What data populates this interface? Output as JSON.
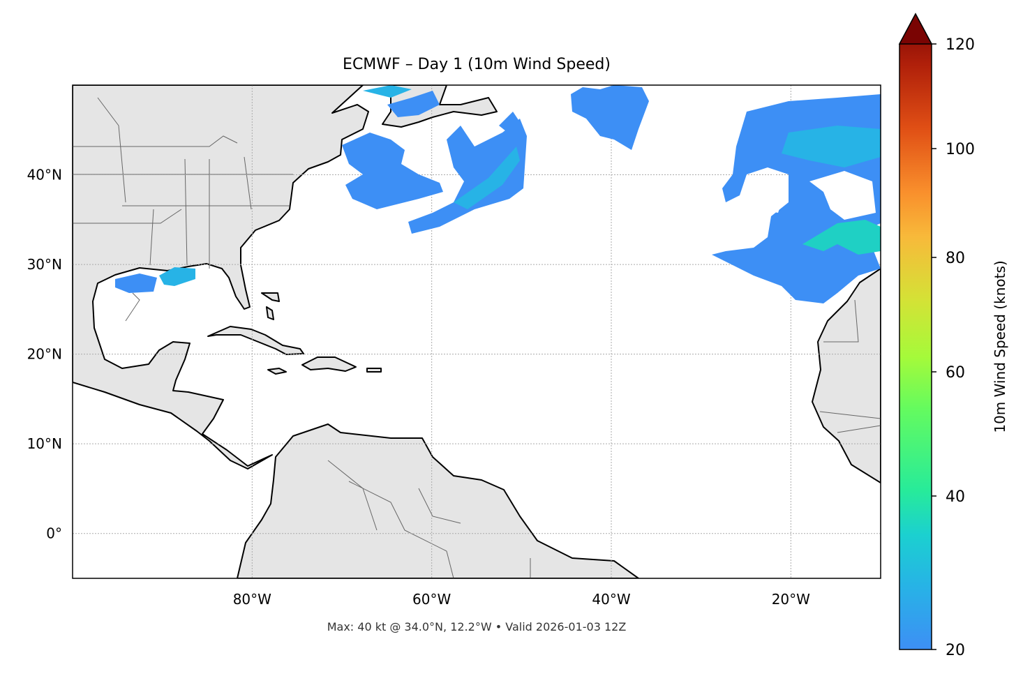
{
  "title": "ECMWF – Day 1 (10m Wind Speed)",
  "footer": "Max: 40 kt @ 34.0°N, 12.2°W • Valid 2026-01-03 12Z",
  "map": {
    "extent": {
      "lon": [
        -100,
        -10
      ],
      "lat": [
        -5,
        50
      ]
    },
    "lon_ticks": [
      {
        "value": -80,
        "label": "80°W"
      },
      {
        "value": -60,
        "label": "60°W"
      },
      {
        "value": -40,
        "label": "40°W"
      },
      {
        "value": -20,
        "label": "20°W"
      }
    ],
    "lat_ticks": [
      {
        "value": 40,
        "label": "40°N"
      },
      {
        "value": 30,
        "label": "30°N"
      },
      {
        "value": 20,
        "label": "20°N"
      },
      {
        "value": 10,
        "label": "10°N"
      },
      {
        "value": 0,
        "label": "0°"
      }
    ],
    "land_color": "#e5e5e5",
    "coast_color": "#000000",
    "border_color": "#666666"
  },
  "colorbar": {
    "label": "10m Wind Speed (knots)",
    "colormap": "turbo",
    "extend": "max",
    "ticks": [
      {
        "value": 20,
        "label": "20"
      },
      {
        "value": 40,
        "label": "40"
      },
      {
        "value": 60,
        "label": "60"
      },
      {
        "value": 80,
        "label": "80"
      },
      {
        "value": 100,
        "label": "100"
      },
      {
        "value": 120,
        "label": "120"
      }
    ]
  }
}
